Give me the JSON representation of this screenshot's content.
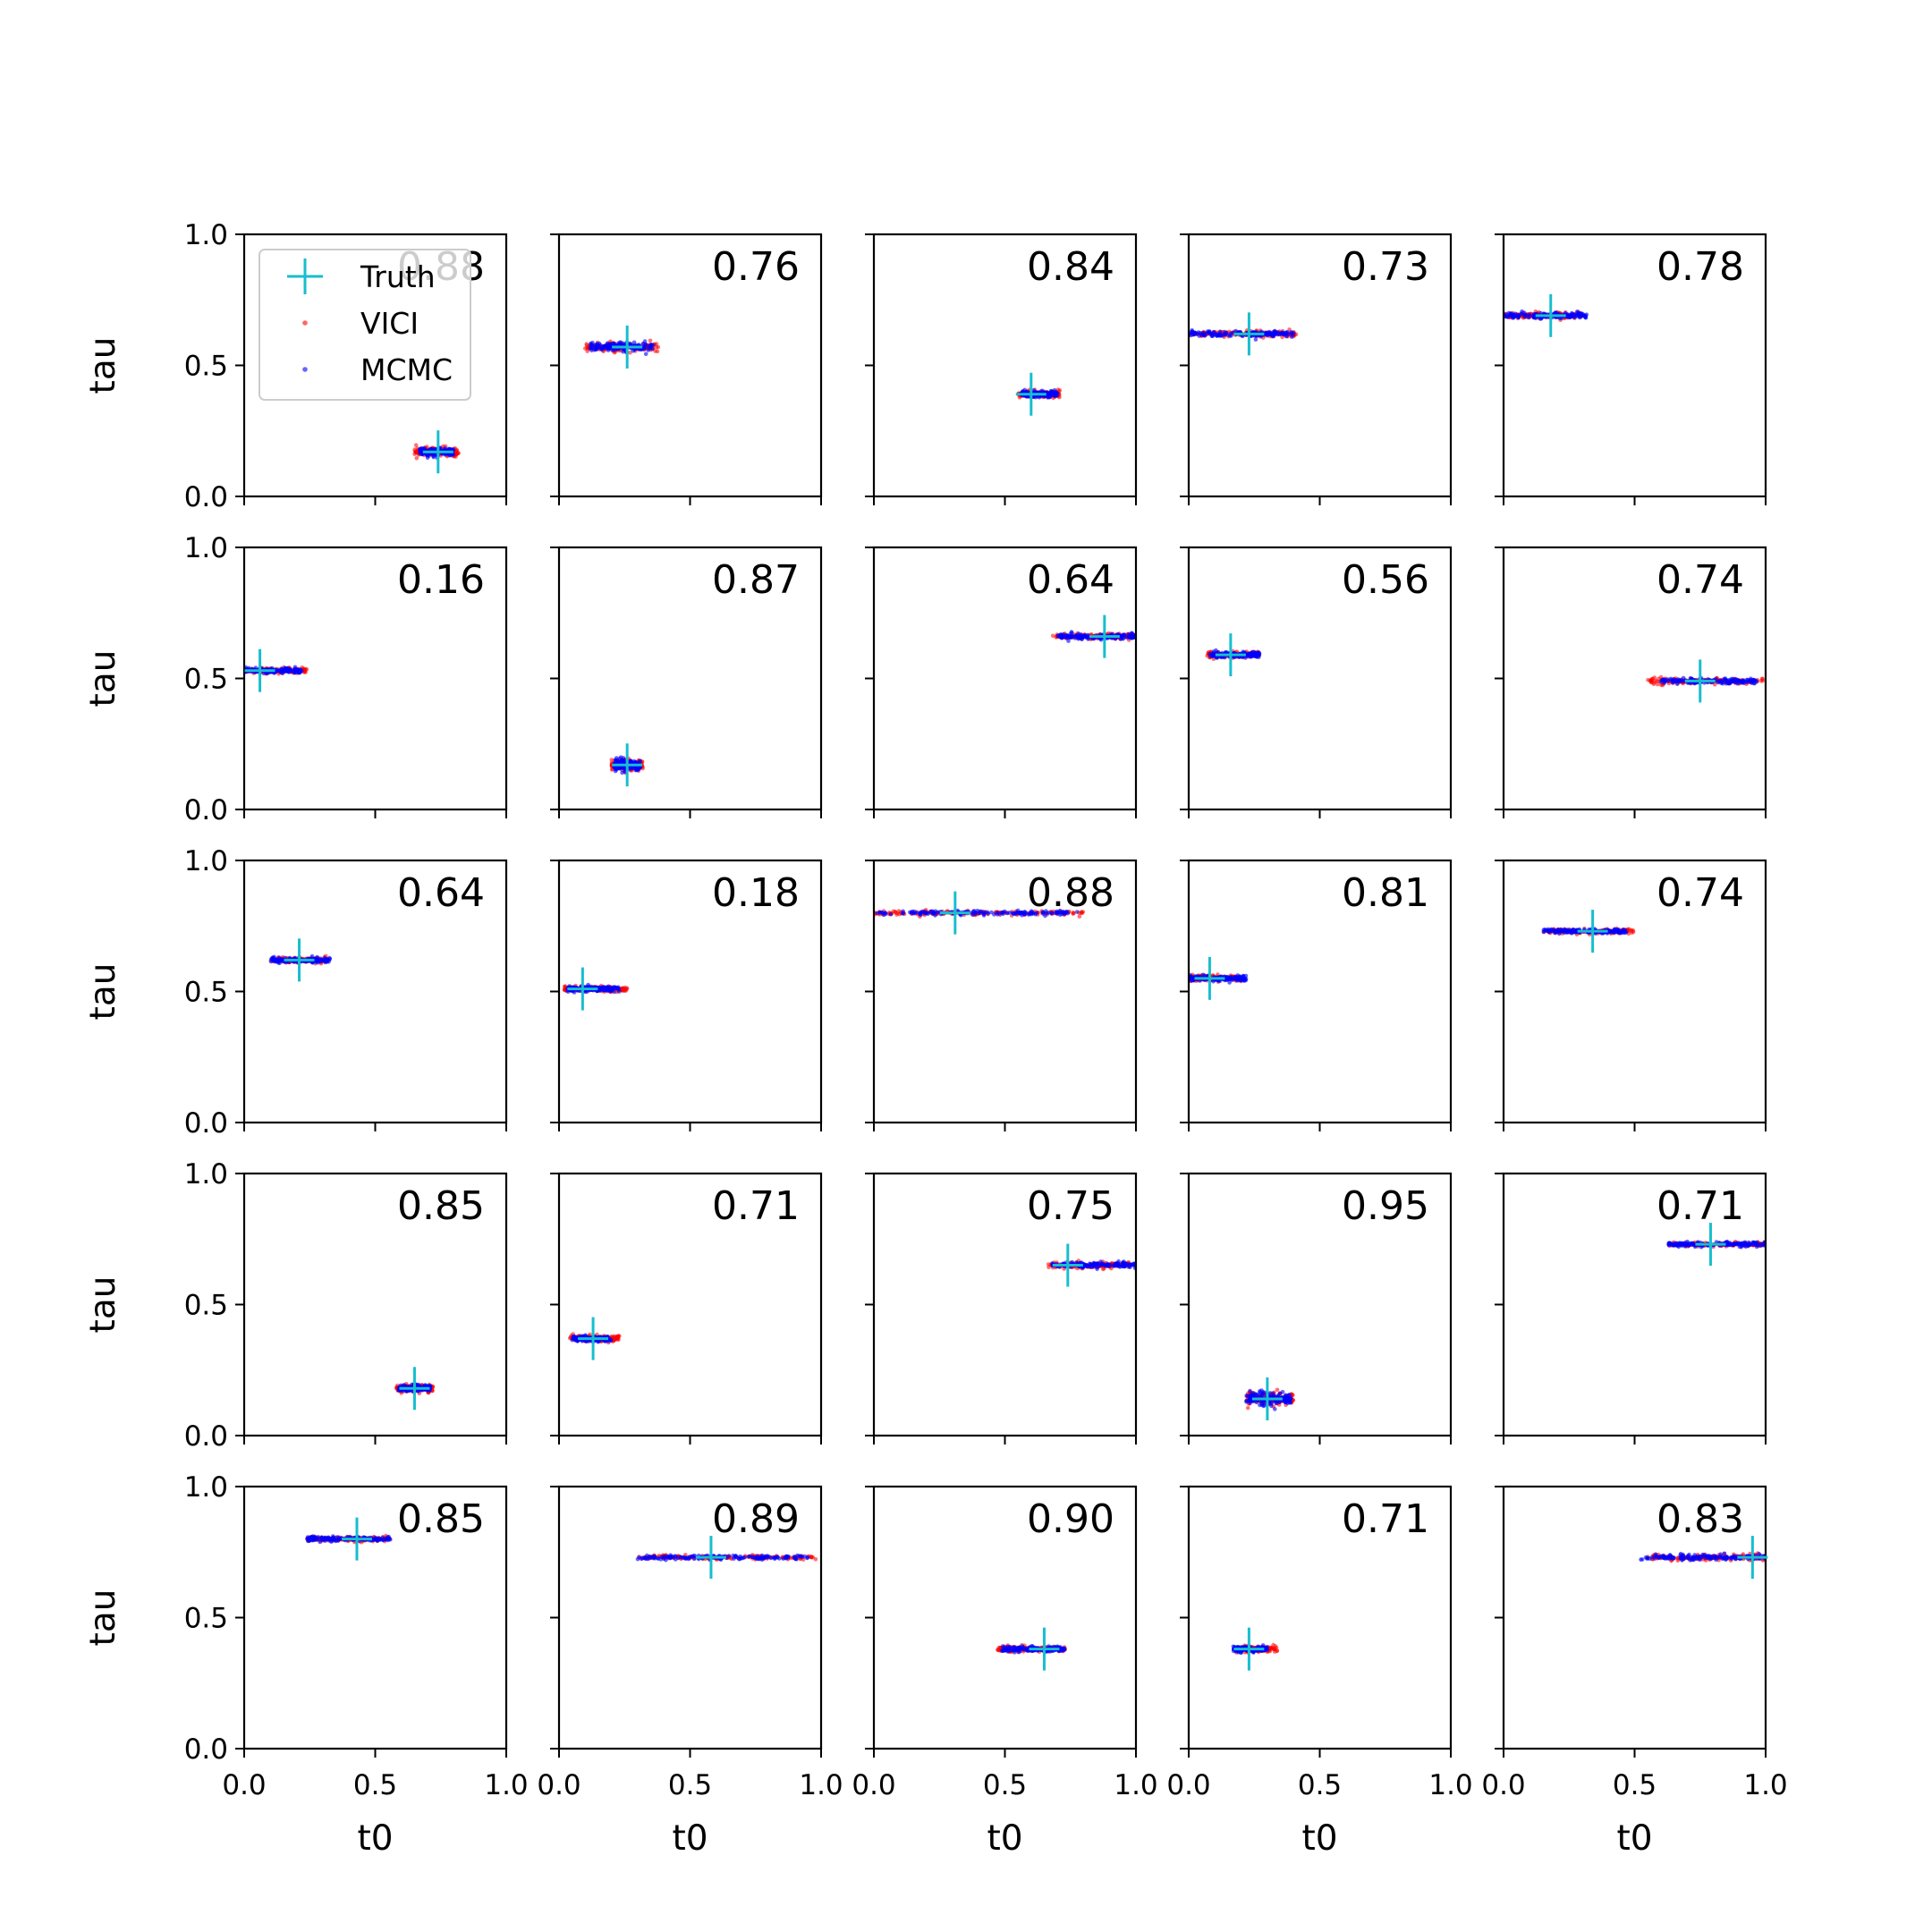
{
  "chart_data": {
    "type": "scatter",
    "layout": "5x5 grid of posterior scatter panels",
    "xlabel": "t0",
    "ylabel": "tau",
    "xlim": [
      0,
      1
    ],
    "ylim": [
      0,
      1
    ],
    "xticks": [
      "0.0",
      "0.5",
      "1.0"
    ],
    "yticks": [
      "0.0",
      "0.5",
      "1.0"
    ],
    "grid": false,
    "legend": {
      "placement": "upper-left of first panel",
      "entries": [
        {
          "label": "Truth",
          "marker": "plus",
          "color": "#17becf"
        },
        {
          "label": "VICI",
          "marker": "dot",
          "color": "#ff0000"
        },
        {
          "label": "MCMC",
          "marker": "dot",
          "color": "#0000ff"
        }
      ]
    },
    "colors": {
      "truth": "#17becf",
      "vici": "#ff0000",
      "mcmc": "#0000ff"
    },
    "panels": [
      {
        "label": "0.88",
        "truth": [
          0.74,
          0.17
        ],
        "vici_t0": [
          0.65,
          0.82
        ],
        "mcmc_t0": [
          0.67,
          0.8
        ],
        "tau_spread": 0.02
      },
      {
        "label": "0.76",
        "truth": [
          0.26,
          0.57
        ],
        "vici_t0": [
          0.1,
          0.38
        ],
        "mcmc_t0": [
          0.12,
          0.36
        ],
        "tau_spread": 0.02
      },
      {
        "label": "0.84",
        "truth": [
          0.6,
          0.39
        ],
        "vici_t0": [
          0.55,
          0.71
        ],
        "mcmc_t0": [
          0.56,
          0.7
        ],
        "tau_spread": 0.015
      },
      {
        "label": "0.73",
        "truth": [
          0.23,
          0.62
        ],
        "vici_t0": [
          0.01,
          0.41
        ],
        "mcmc_t0": [
          0.0,
          0.4
        ],
        "tau_spread": 0.012
      },
      {
        "label": "0.78",
        "truth": [
          0.18,
          0.69
        ],
        "vici_t0": [
          0.0,
          0.31
        ],
        "mcmc_t0": [
          0.0,
          0.32
        ],
        "tau_spread": 0.012
      },
      {
        "label": "0.16",
        "truth": [
          0.06,
          0.53
        ],
        "vici_t0": [
          0.0,
          0.24
        ],
        "mcmc_t0": [
          0.0,
          0.22
        ],
        "tau_spread": 0.012
      },
      {
        "label": "0.87",
        "truth": [
          0.26,
          0.17
        ],
        "vici_t0": [
          0.2,
          0.32
        ],
        "mcmc_t0": [
          0.21,
          0.31
        ],
        "tau_spread": 0.025
      },
      {
        "label": "0.64",
        "truth": [
          0.88,
          0.66
        ],
        "vici_t0": [
          0.68,
          1.0
        ],
        "mcmc_t0": [
          0.7,
          1.0
        ],
        "tau_spread": 0.012
      },
      {
        "label": "0.56",
        "truth": [
          0.16,
          0.59
        ],
        "vici_t0": [
          0.07,
          0.27
        ],
        "mcmc_t0": [
          0.08,
          0.27
        ],
        "tau_spread": 0.012
      },
      {
        "label": "0.74",
        "truth": [
          0.75,
          0.49
        ],
        "vici_t0": [
          0.55,
          0.99
        ],
        "mcmc_t0": [
          0.6,
          0.97
        ],
        "tau_spread": 0.012
      },
      {
        "label": "0.64",
        "truth": [
          0.21,
          0.62
        ],
        "vici_t0": [
          0.1,
          0.32
        ],
        "mcmc_t0": [
          0.1,
          0.33
        ],
        "tau_spread": 0.012
      },
      {
        "label": "0.18",
        "truth": [
          0.09,
          0.51
        ],
        "vici_t0": [
          0.02,
          0.26
        ],
        "mcmc_t0": [
          0.03,
          0.23
        ],
        "tau_spread": 0.012
      },
      {
        "label": "0.88",
        "truth": [
          0.31,
          0.8
        ],
        "vici_t0": [
          0.0,
          0.8
        ],
        "mcmc_t0": [
          0.0,
          0.78
        ],
        "tau_spread": 0.01
      },
      {
        "label": "0.81",
        "truth": [
          0.08,
          0.55
        ],
        "vici_t0": [
          0.0,
          0.2
        ],
        "mcmc_t0": [
          0.0,
          0.22
        ],
        "tau_spread": 0.012
      },
      {
        "label": "0.74",
        "truth": [
          0.34,
          0.73
        ],
        "vici_t0": [
          0.15,
          0.5
        ],
        "mcmc_t0": [
          0.15,
          0.47
        ],
        "tau_spread": 0.01
      },
      {
        "label": "0.85",
        "truth": [
          0.65,
          0.18
        ],
        "vici_t0": [
          0.58,
          0.72
        ],
        "mcmc_t0": [
          0.59,
          0.71
        ],
        "tau_spread": 0.015
      },
      {
        "label": "0.71",
        "truth": [
          0.13,
          0.37
        ],
        "vici_t0": [
          0.04,
          0.23
        ],
        "mcmc_t0": [
          0.05,
          0.2
        ],
        "tau_spread": 0.012
      },
      {
        "label": "0.75",
        "truth": [
          0.74,
          0.65
        ],
        "vici_t0": [
          0.66,
          0.98
        ],
        "mcmc_t0": [
          0.68,
          1.0
        ],
        "tau_spread": 0.012
      },
      {
        "label": "0.95",
        "truth": [
          0.3,
          0.14
        ],
        "vici_t0": [
          0.22,
          0.4
        ],
        "mcmc_t0": [
          0.22,
          0.39
        ],
        "tau_spread": 0.03
      },
      {
        "label": "0.71",
        "truth": [
          0.79,
          0.73
        ],
        "vici_t0": [
          0.63,
          1.0
        ],
        "mcmc_t0": [
          0.63,
          1.0
        ],
        "tau_spread": 0.01
      },
      {
        "label": "0.85",
        "truth": [
          0.43,
          0.8
        ],
        "vici_t0": [
          0.24,
          0.56
        ],
        "mcmc_t0": [
          0.24,
          0.56
        ],
        "tau_spread": 0.01
      },
      {
        "label": "0.89",
        "truth": [
          0.58,
          0.73
        ],
        "vici_t0": [
          0.3,
          0.98
        ],
        "mcmc_t0": [
          0.3,
          0.95
        ],
        "tau_spread": 0.01
      },
      {
        "label": "0.90",
        "truth": [
          0.65,
          0.38
        ],
        "vici_t0": [
          0.47,
          0.73
        ],
        "mcmc_t0": [
          0.49,
          0.73
        ],
        "tau_spread": 0.012
      },
      {
        "label": "0.71",
        "truth": [
          0.23,
          0.38
        ],
        "vici_t0": [
          0.18,
          0.34
        ],
        "mcmc_t0": [
          0.17,
          0.3
        ],
        "tau_spread": 0.012
      },
      {
        "label": "0.83",
        "truth": [
          0.95,
          0.73
        ],
        "vici_t0": [
          0.55,
          0.99
        ],
        "mcmc_t0": [
          0.52,
          1.0
        ],
        "tau_spread": 0.012
      }
    ]
  }
}
